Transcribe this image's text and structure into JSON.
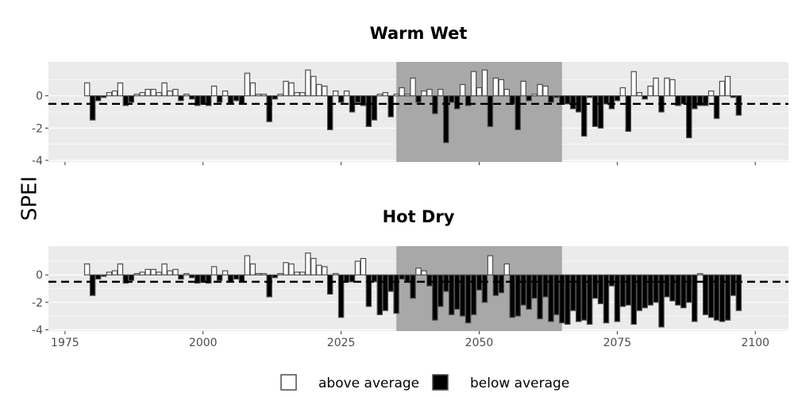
{
  "chart_data": {
    "type": "bar",
    "ylabel": "SPEI",
    "x_range": [
      1972,
      2106
    ],
    "y_range": [
      -4.1,
      2.1
    ],
    "x_ticks": [
      1975,
      2000,
      2025,
      2050,
      2075,
      2100
    ],
    "y_ticks": [
      0,
      -2,
      -4
    ],
    "threshold": -0.5,
    "highlight_period": [
      2035,
      2065
    ],
    "legend": {
      "above": "above average",
      "below": "below average"
    },
    "panels": [
      {
        "title": "Warm Wet",
        "start_year": 1979,
        "values": [
          0.8,
          -1.5,
          -0.3,
          -0.1,
          0.2,
          0.3,
          0.8,
          -0.6,
          -0.4,
          0.1,
          0.2,
          0.4,
          0.4,
          0.2,
          0.8,
          0.3,
          0.4,
          -0.3,
          0.1,
          -0.2,
          -0.6,
          -0.5,
          -0.6,
          0.6,
          -0.4,
          0.3,
          -0.5,
          -0.3,
          -0.5,
          1.4,
          0.8,
          0.1,
          0.1,
          -1.6,
          -0.2,
          0.1,
          0.9,
          0.8,
          0.2,
          0.2,
          1.6,
          1.2,
          0.7,
          0.6,
          -2.1,
          0.3,
          -0.4,
          0.3,
          -1.0,
          -0.4,
          -0.6,
          -1.9,
          -1.5,
          0.1,
          0.2,
          -1.3,
          0.1,
          0.5,
          0.1,
          1.1,
          -0.4,
          0.3,
          0.4,
          -1.1,
          0.4,
          -2.9,
          -0.4,
          -0.8,
          0.7,
          -0.6,
          1.5,
          0.5,
          1.6,
          -1.9,
          1.1,
          1.0,
          0.4,
          -0.5,
          -2.1,
          0.9,
          -0.3,
          0.1,
          0.7,
          0.6,
          -0.4,
          -0.1,
          -0.5,
          -0.5,
          -0.8,
          -1.0,
          -2.5,
          -0.1,
          -1.9,
          -2.0,
          -0.5,
          -0.8,
          -0.3,
          0.5,
          -2.2,
          1.5,
          0.2,
          -0.2,
          0.6,
          1.1,
          -1.0,
          1.1,
          1.0,
          -0.6,
          -0.5,
          -2.6,
          -0.8,
          -0.6,
          -0.6,
          0.3,
          -1.4,
          0.9,
          1.2,
          -0.1,
          -1.2
        ]
      },
      {
        "title": "Hot Dry",
        "start_year": 1979,
        "values": [
          0.8,
          -1.5,
          -0.3,
          -0.1,
          0.2,
          0.3,
          0.8,
          -0.6,
          -0.4,
          0.1,
          0.2,
          0.4,
          0.4,
          0.2,
          0.8,
          0.3,
          0.4,
          -0.3,
          0.1,
          -0.2,
          -0.6,
          -0.5,
          -0.6,
          0.6,
          -0.4,
          0.3,
          -0.5,
          -0.3,
          -0.5,
          1.4,
          0.8,
          0.1,
          0.1,
          -1.6,
          -0.2,
          0.1,
          0.9,
          0.8,
          0.2,
          0.2,
          1.6,
          1.2,
          0.7,
          0.6,
          -1.4,
          0.1,
          -3.1,
          -0.5,
          -0.5,
          1.0,
          1.2,
          -2.3,
          -0.5,
          -2.9,
          -2.6,
          -1.2,
          -2.8,
          -0.3,
          -0.5,
          -1.7,
          0.5,
          0.3,
          -0.8,
          -3.3,
          -2.3,
          -1.2,
          -2.9,
          -2.5,
          -3.0,
          -3.5,
          -2.9,
          -1.1,
          -2.0,
          1.4,
          -1.5,
          -1.3,
          0.8,
          -3.1,
          -3.0,
          -2.2,
          -2.5,
          -1.7,
          -3.2,
          -1.6,
          -3.4,
          -2.9,
          -3.5,
          -3.6,
          -2.6,
          -3.4,
          -3.3,
          -3.6,
          -1.7,
          -2.1,
          -3.5,
          -0.8,
          -3.4,
          -2.3,
          -2.2,
          -3.6,
          -2.6,
          -2.4,
          -2.2,
          -2.0,
          -3.8,
          -1.6,
          -1.9,
          -2.2,
          -2.4,
          -2.0,
          -3.4,
          0.1,
          -2.9,
          -3.1,
          -3.3,
          -3.4,
          -3.3,
          -1.5,
          -2.6
        ]
      }
    ]
  }
}
